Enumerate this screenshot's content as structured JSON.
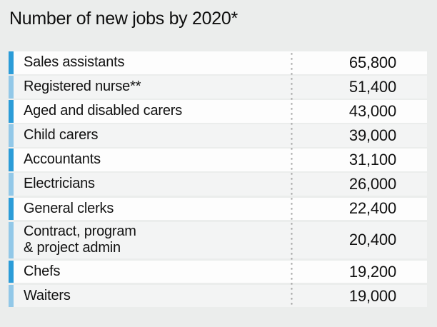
{
  "title": "Number of new jobs by 2020*",
  "colors": {
    "background": "#ebedec",
    "row_odd": "#fdfdfd",
    "row_even": "#f3f4f4",
    "accent_dark": "#2b9cd8",
    "accent_light": "#92c8e8",
    "text": "#111111",
    "dots": "#9a9a9a"
  },
  "table": {
    "rows": [
      {
        "label": "Sales assistants",
        "value": "65,800",
        "accent": "dark"
      },
      {
        "label": "Registered nurse**",
        "value": "51,400",
        "accent": "light"
      },
      {
        "label": "Aged and disabled carers",
        "value": "43,000",
        "accent": "dark"
      },
      {
        "label": "Child carers",
        "value": "39,000",
        "accent": "light"
      },
      {
        "label": "Accountants",
        "value": "31,100",
        "accent": "dark"
      },
      {
        "label": "Electricians",
        "value": "26,000",
        "accent": "light"
      },
      {
        "label": "General clerks",
        "value": "22,400",
        "accent": "dark"
      },
      {
        "label": "Contract, program\n& project admin",
        "value": "20,400",
        "accent": "light"
      },
      {
        "label": "Chefs",
        "value": "19,200",
        "accent": "dark"
      },
      {
        "label": "Waiters",
        "value": "19,000",
        "accent": "light"
      }
    ]
  },
  "chart_data": {
    "type": "table",
    "title": "Number of new jobs by 2020*",
    "categories": [
      "Sales assistants",
      "Registered nurse**",
      "Aged and disabled carers",
      "Child carers",
      "Accountants",
      "Electricians",
      "General clerks",
      "Contract, program & project admin",
      "Chefs",
      "Waiters"
    ],
    "values": [
      65800,
      51400,
      43000,
      39000,
      31100,
      26000,
      22400,
      20400,
      19200,
      19000
    ],
    "legend_position": "none",
    "grid": false,
    "notes": "alternating blue accent bars, dotted column divider between labels and values"
  }
}
